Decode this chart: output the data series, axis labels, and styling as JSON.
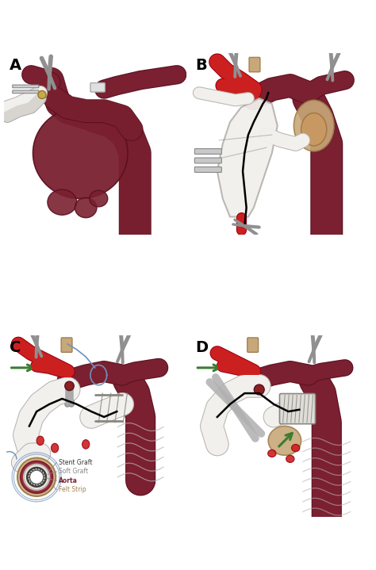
{
  "background_color": "#ffffff",
  "panel_labels": [
    "A",
    "B",
    "C",
    "D"
  ],
  "panel_label_fontsize": 14,
  "panel_label_fontweight": "bold",
  "aorta_color": "#7a2030",
  "aorta_light": "#c06070",
  "aorta_dark": "#5a1020",
  "graft_color": "#f2f0ec",
  "graft_edge": "#b8b4b0",
  "graft_shadow": "#d8d4d0",
  "stent_color": "#e0ddd8",
  "stent_edge": "#888880",
  "green_arrow_color": "#3a7d30",
  "felt_color": "#c8a878",
  "felt_edge": "#a08050",
  "suture_color": "#7090b8",
  "clamp_color": "#909090",
  "clamp_light": "#c0c0c0",
  "red_vessel": "#cc2020",
  "figsize": [
    4.74,
    7.19
  ],
  "dpi": 100
}
